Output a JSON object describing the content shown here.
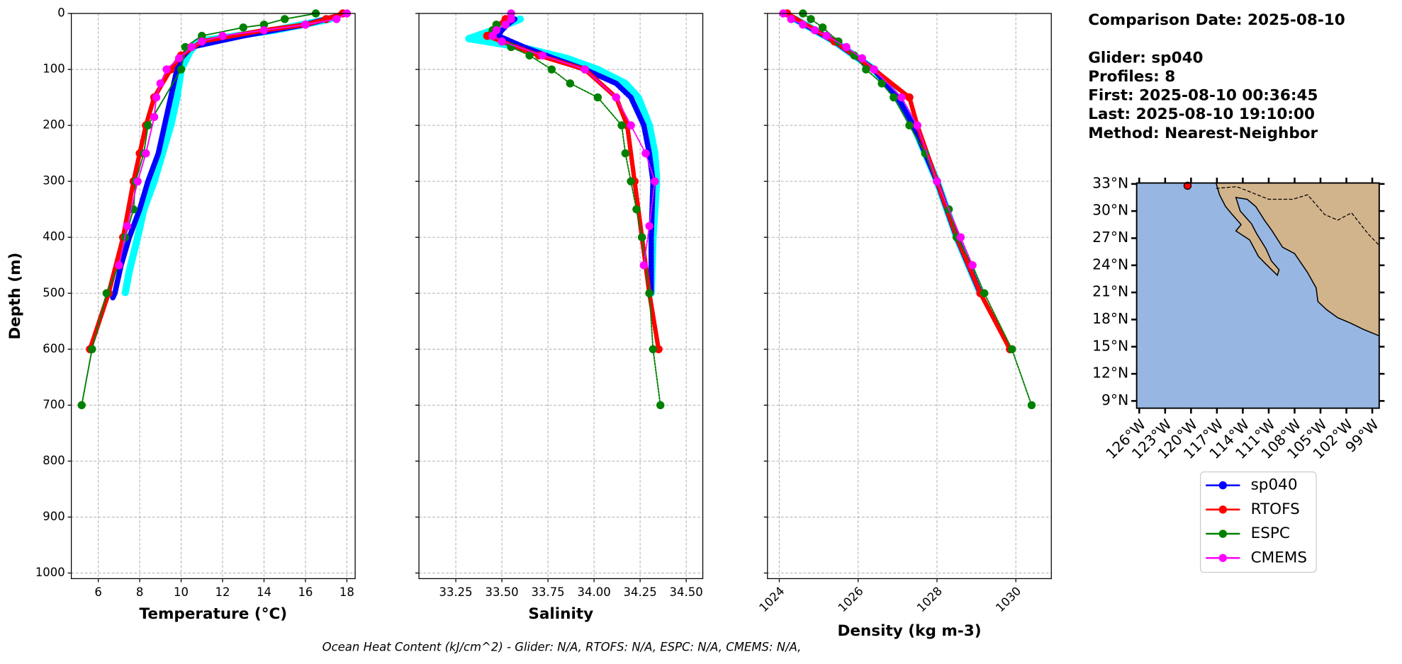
{
  "chart_data": [
    {
      "type": "profile",
      "xlabel": "Temperature (°C)",
      "ylabel": "Depth (m)",
      "xlim": [
        4.7,
        18.4
      ],
      "xticks": [
        6,
        8,
        10,
        12,
        14,
        16,
        18
      ],
      "ylim": [
        0,
        1010
      ],
      "y_inverted": true,
      "yticks": [
        0,
        100,
        200,
        300,
        400,
        500,
        600,
        700,
        800,
        900,
        1000
      ],
      "grid": true,
      "series": [
        {
          "color": "#00ffff",
          "linewidth": 8,
          "markers": false,
          "depth": [
            10,
            30,
            50,
            70,
            100,
            150,
            200,
            250,
            300,
            350,
            400,
            460,
            500
          ],
          "x": [
            17.2,
            14.5,
            10.8,
            10.4,
            10.0,
            9.8,
            9.5,
            9.1,
            8.7,
            8.2,
            7.9,
            7.5,
            7.3
          ]
        },
        {
          "name": "sp040",
          "color": "#0000ff",
          "linewidth": 6,
          "markers": false,
          "depth": [
            5,
            20,
            40,
            60,
            80,
            100,
            150,
            200,
            250,
            300,
            350,
            400,
            450,
            500,
            508
          ],
          "x": [
            17.5,
            16,
            13,
            10.5,
            10,
            9.8,
            9.5,
            9.2,
            8.9,
            8.4,
            8.0,
            7.5,
            7.1,
            6.8,
            6.7
          ]
        },
        {
          "name": "RTOFS",
          "color": "#ff0000",
          "linewidth": 5,
          "markers": true,
          "depth": [
            0,
            10,
            20,
            30,
            50,
            75,
            100,
            150,
            200,
            250,
            300,
            400,
            500,
            600
          ],
          "x": [
            17.8,
            17,
            16,
            14,
            11,
            10,
            9.5,
            8.7,
            8.3,
            8.0,
            7.7,
            7.2,
            6.5,
            5.6
          ]
        },
        {
          "name": "ESPC",
          "color": "#008000",
          "linewidth": 1.5,
          "markers": true,
          "depth": [
            0,
            10,
            20,
            25,
            40,
            60,
            100,
            200,
            250,
            300,
            350,
            400,
            450,
            500,
            600,
            700
          ],
          "x": [
            16.5,
            15,
            14,
            13,
            11,
            10.2,
            10,
            8.4,
            8.2,
            7.8,
            7.7,
            7.3,
            7.0,
            6.4,
            5.7,
            5.2
          ]
        },
        {
          "name": "CMEMS",
          "color": "#ff00ff",
          "linewidth": 1.5,
          "markers": true,
          "depth": [
            0,
            10,
            20,
            30,
            40,
            50,
            60,
            80,
            100,
            125,
            150,
            185,
            250,
            300,
            380,
            450
          ],
          "x": [
            18,
            17.5,
            16,
            14,
            12,
            11,
            10.5,
            9.9,
            9.3,
            9.0,
            8.8,
            8.7,
            8.3,
            7.9,
            7.4,
            7.0
          ]
        }
      ]
    },
    {
      "type": "profile",
      "xlabel": "Salinity",
      "xlim": [
        33.05,
        34.59
      ],
      "xticks": [
        33.25,
        {
          "value": 33.5,
          "label": "33.50"
        },
        33.75,
        {
          "value": 34,
          "label": "34.00"
        },
        34.25,
        {
          "value": 34.5,
          "label": "34.50"
        }
      ],
      "ylim": [
        0,
        1010
      ],
      "y_inverted": true,
      "grid": true,
      "series": [
        {
          "color": "#00ffff",
          "linewidth": 8,
          "markers": false,
          "depth": [
            10,
            30,
            45,
            60,
            80,
            100,
            125,
            150,
            200,
            250,
            300,
            400,
            500
          ],
          "x": [
            33.6,
            33.45,
            33.32,
            33.6,
            33.85,
            34.02,
            34.17,
            34.24,
            34.3,
            34.33,
            34.34,
            34.32,
            34.31
          ]
        },
        {
          "color": "#0000ff",
          "linewidth": 6,
          "markers": false,
          "depth": [
            10,
            20,
            30,
            40,
            50,
            60,
            80,
            100,
            125,
            150,
            200,
            250,
            300,
            400,
            500
          ],
          "x": [
            33.57,
            33.53,
            33.5,
            33.48,
            33.55,
            33.62,
            33.78,
            33.95,
            34.12,
            34.2,
            34.27,
            34.3,
            34.32,
            34.31,
            34.31
          ]
        },
        {
          "color": "#ff0000",
          "linewidth": 5,
          "markers": true,
          "depth": [
            10,
            30,
            40,
            50,
            75,
            100,
            150,
            200,
            300,
            400,
            500,
            600
          ],
          "x": [
            33.52,
            33.45,
            33.42,
            33.5,
            33.7,
            33.95,
            34.12,
            34.18,
            34.22,
            34.26,
            34.3,
            34.35
          ]
        },
        {
          "color": "#008000",
          "linewidth": 1.5,
          "markers": true,
          "depth": [
            20,
            30,
            40,
            60,
            75,
            100,
            125,
            150,
            200,
            250,
            300,
            350,
            400,
            500,
            600,
            700
          ],
          "x": [
            33.47,
            33.45,
            33.45,
            33.55,
            33.65,
            33.77,
            33.87,
            34.02,
            34.15,
            34.17,
            34.2,
            34.23,
            34.26,
            34.3,
            34.32,
            34.36
          ]
        },
        {
          "color": "#ff00ff",
          "linewidth": 1.5,
          "markers": true,
          "depth": [
            0,
            10,
            20,
            30,
            40,
            50,
            75,
            100,
            150,
            200,
            250,
            300,
            380,
            450
          ],
          "x": [
            33.55,
            33.55,
            33.52,
            33.47,
            33.45,
            33.5,
            33.72,
            33.95,
            34.12,
            34.2,
            34.28,
            34.33,
            34.3,
            34.27
          ]
        }
      ]
    },
    {
      "type": "profile",
      "xlabel": "Density (kg m-3)",
      "xlim": [
        1023.7,
        1030.9
      ],
      "xticks": [
        1024,
        1026,
        1028,
        1030
      ],
      "xtick_rotation": 45,
      "ylim": [
        0,
        1010
      ],
      "y_inverted": true,
      "grid": true,
      "series": [
        {
          "color": "#00ffff",
          "linewidth": 8,
          "markers": false,
          "depth": [
            10,
            50,
            100,
            150,
            200,
            300,
            400,
            500
          ],
          "x": [
            1024.4,
            1025.4,
            1026.4,
            1027.0,
            1027.4,
            1028.0,
            1028.5,
            1029.1
          ]
        },
        {
          "color": "#0000ff",
          "linewidth": 6,
          "markers": false,
          "depth": [
            10,
            50,
            100,
            150,
            200,
            300,
            400,
            500
          ],
          "x": [
            1024.4,
            1025.4,
            1026.4,
            1027.0,
            1027.4,
            1028.0,
            1028.5,
            1029.1
          ]
        },
        {
          "color": "#ff0000",
          "linewidth": 5,
          "markers": true,
          "depth": [
            0,
            50,
            100,
            150,
            200,
            300,
            400,
            500,
            600
          ],
          "x": [
            1024.2,
            1025.4,
            1026.4,
            1027.3,
            1027.5,
            1028.0,
            1028.5,
            1029.1,
            1029.85
          ]
        },
        {
          "color": "#008000",
          "linewidth": 1.5,
          "markers": true,
          "depth": [
            0,
            10,
            25,
            50,
            75,
            100,
            125,
            150,
            200,
            250,
            300,
            350,
            400,
            450,
            500,
            600,
            700
          ],
          "x": [
            1024.6,
            1024.8,
            1025.1,
            1025.5,
            1025.9,
            1026.2,
            1026.6,
            1026.9,
            1027.3,
            1027.7,
            1028.0,
            1028.3,
            1028.5,
            1028.9,
            1029.2,
            1029.9,
            1030.4
          ]
        },
        {
          "color": "#ff00ff",
          "linewidth": 1.5,
          "markers": true,
          "depth": [
            0,
            10,
            20,
            30,
            40,
            60,
            80,
            100,
            150,
            200,
            300,
            400,
            450
          ],
          "x": [
            1024.1,
            1024.3,
            1024.6,
            1024.9,
            1025.2,
            1025.7,
            1026.1,
            1026.4,
            1027.1,
            1027.5,
            1028.0,
            1028.6,
            1028.9
          ]
        }
      ]
    },
    {
      "type": "map",
      "xlim": [
        -126.3,
        -98.2
      ],
      "ylim": [
        8.2,
        33.1
      ],
      "yticks": [
        {
          "value": 33,
          "label": "33°N"
        },
        {
          "value": 30,
          "label": "30°N"
        },
        {
          "value": 27,
          "label": "27°N"
        },
        {
          "value": 24,
          "label": "24°N"
        },
        {
          "value": 21,
          "label": "21°N"
        },
        {
          "value": 18,
          "label": "18°N"
        },
        {
          "value": 15,
          "label": "15°N"
        },
        {
          "value": 12,
          "label": "12°N"
        },
        {
          "value": 9,
          "label": "9°N"
        }
      ],
      "xticks": [
        {
          "value": -126,
          "label": "126°W"
        },
        {
          "value": -123,
          "label": "123°W"
        },
        {
          "value": -120,
          "label": "120°W"
        },
        {
          "value": -117,
          "label": "117°W"
        },
        {
          "value": -114,
          "label": "114°W"
        },
        {
          "value": -111,
          "label": "111°W"
        },
        {
          "value": -108,
          "label": "108°W"
        },
        {
          "value": -105,
          "label": "105°W"
        },
        {
          "value": -102,
          "label": "102°W"
        },
        {
          "value": -99,
          "label": "99°W"
        }
      ],
      "point": {
        "lon": -120.4,
        "lat": 32.8,
        "color": "#ff0000"
      }
    }
  ],
  "info": [
    "Comparison Date: 2025-08-10",
    "Glider: sp040",
    "Profiles: 8",
    "First: 2025-08-10 00:36:45",
    "Last: 2025-08-10 19:10:00",
    "Method: Nearest-Neighbor"
  ],
  "footnote": "Ocean Heat Content (kJ/cm^2) - Glider: N/A,  RTOFS: N/A,  ESPC: N/A,  CMEMS: N/A,"
}
